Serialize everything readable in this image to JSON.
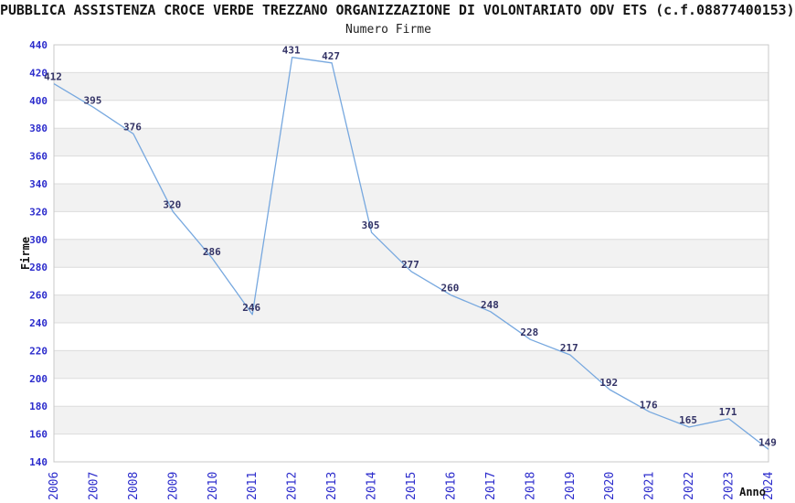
{
  "chart": {
    "title": "PUBBLICA ASSISTENZA CROCE VERDE TREZZANO ORGANIZZAZIONE DI VOLONTARIATO ODV ETS (c.f.08877400153)",
    "subtitle": "Numero Firme"
  },
  "chart_data": {
    "type": "line",
    "title": "PUBBLICA ASSISTENZA CROCE VERDE TREZZANO ORGANIZZAZIONE DI VOLONTARIATO ODV ETS (c.f.08877400153)",
    "subtitle": "Numero Firme",
    "xlabel": "Anno",
    "ylabel": "Firme",
    "x": [
      "2006",
      "2007",
      "2008",
      "2009",
      "2010",
      "2011",
      "2012",
      "2013",
      "2014",
      "2015",
      "2016",
      "2017",
      "2018",
      "2019",
      "2020",
      "2021",
      "2022",
      "2023",
      "2024"
    ],
    "series": [
      {
        "name": "Numero Firme",
        "values": [
          412,
          395,
          376,
          320,
          286,
          246,
          431,
          427,
          305,
          277,
          260,
          248,
          228,
          217,
          192,
          176,
          165,
          171,
          149
        ]
      }
    ],
    "point_labels_shown": true,
    "ylim": [
      140,
      440
    ],
    "ytick_step": 20,
    "grid": "horizontal",
    "bands": "alternating",
    "legend": "none",
    "colors": {
      "line": "#77A8DF",
      "tick_labels": "#2C2CCC",
      "point_labels": "#333366",
      "band_alt": "#F2F2F2",
      "gridline": "#DCDCDC",
      "plot_border": "#C8C8C8",
      "axis_title_text": "#111111"
    }
  }
}
